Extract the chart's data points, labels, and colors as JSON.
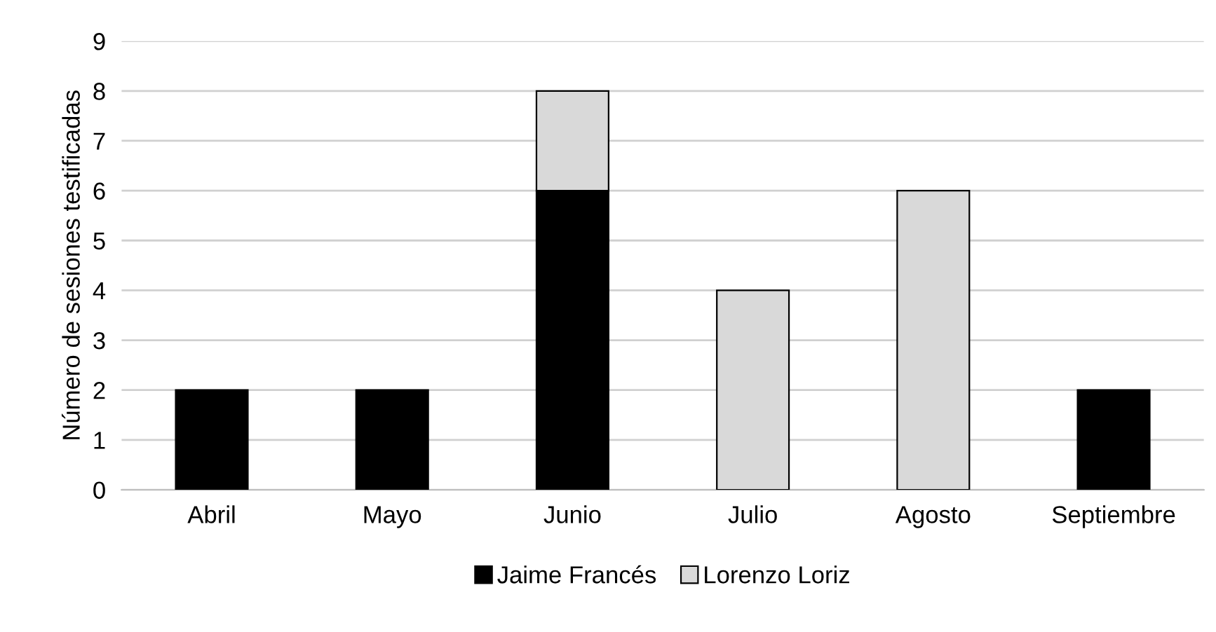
{
  "chart_data": {
    "type": "bar",
    "stacked": true,
    "ylabel": "Número de sesiones testificadas",
    "categories": [
      "Abril",
      "Mayo",
      "Junio",
      "Julio",
      "Agosto",
      "Septiembre"
    ],
    "series": [
      {
        "name": "Jaime Francés",
        "color": "#000000",
        "values": [
          2,
          2,
          6,
          null,
          null,
          2
        ]
      },
      {
        "name": "Lorenzo Loriz",
        "color": "#d9d9d9",
        "values": [
          null,
          null,
          2,
          4,
          6,
          null
        ]
      }
    ],
    "ylim": [
      0,
      9
    ],
    "yticks": [
      0,
      1,
      2,
      3,
      4,
      5,
      6,
      7,
      8,
      9
    ],
    "grid": "y",
    "legend": "bottom"
  }
}
